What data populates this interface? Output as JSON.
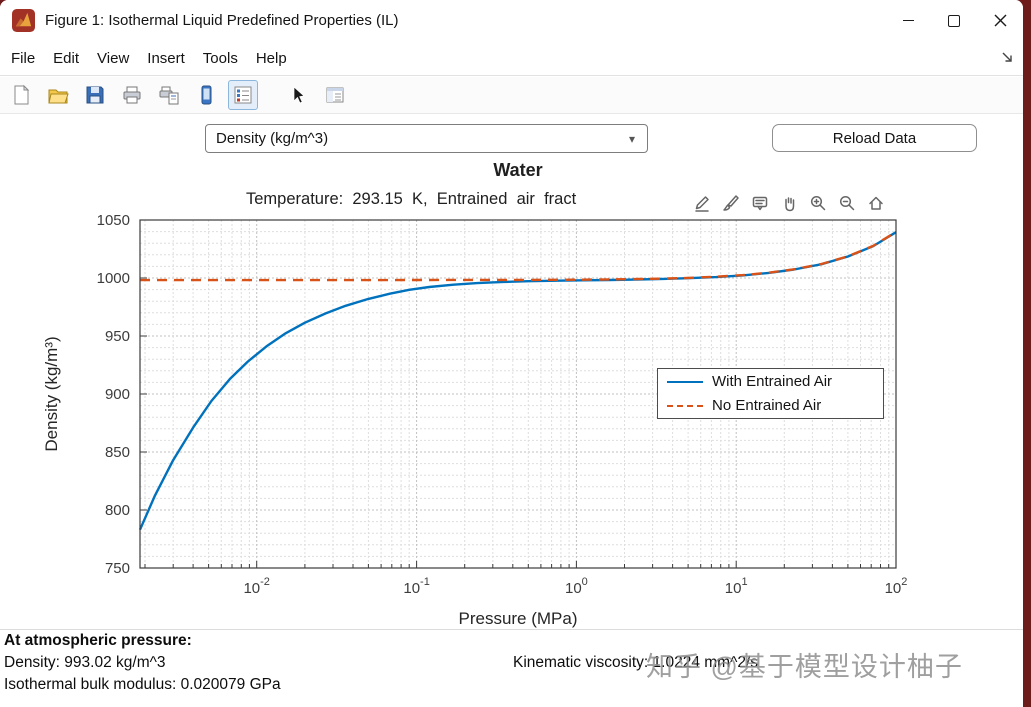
{
  "window": {
    "title": "Figure 1: Isothermal Liquid Predefined Properties (IL)"
  },
  "menubar": {
    "items": [
      "File",
      "Edit",
      "View",
      "Insert",
      "Tools",
      "Help"
    ]
  },
  "toolbar": {
    "icons": [
      "new-document",
      "open-folder",
      "save-floppy",
      "printer",
      "print-preview",
      "figure-palette",
      "plot-browser",
      "arrow-pointer",
      "property-editor"
    ]
  },
  "axes_toolbar": {
    "icons": [
      "edit-pencil",
      "brush",
      "datatip",
      "pan-hand",
      "zoom-in",
      "zoom-out",
      "home"
    ]
  },
  "controls": {
    "property_dropdown": {
      "value": "Density (kg/m^3)",
      "arrow": "▾"
    },
    "reload_button": "Reload Data"
  },
  "chart_data": {
    "type": "line",
    "title": "Water",
    "subtitle": "Temperature:  293.15  K,  Entrained  air  fract",
    "xlabel": "Pressure (MPa)",
    "ylabel": "Density (kg/m³)",
    "xscale": "log",
    "xlim": [
      0.00186,
      100
    ],
    "ylim": [
      750,
      1050
    ],
    "yticks": [
      750,
      800,
      850,
      900,
      950,
      1000,
      1050
    ],
    "xtick_exponents": [
      -2,
      -1,
      0,
      1,
      2
    ],
    "grid": true,
    "minor_grid": true,
    "legend": {
      "location": "right-center"
    },
    "series": [
      {
        "name": "With Entrained Air",
        "color": "#0072BD",
        "style": "solid",
        "points": [
          [
            0.00186,
            783
          ],
          [
            0.0023,
            812
          ],
          [
            0.003,
            843
          ],
          [
            0.004,
            871
          ],
          [
            0.0052,
            894
          ],
          [
            0.0068,
            913
          ],
          [
            0.0088,
            928
          ],
          [
            0.0115,
            941
          ],
          [
            0.015,
            952
          ],
          [
            0.02,
            961.5
          ],
          [
            0.027,
            969.5
          ],
          [
            0.036,
            976
          ],
          [
            0.05,
            982
          ],
          [
            0.068,
            986.5
          ],
          [
            0.09,
            989.8
          ],
          [
            0.12,
            992.2
          ],
          [
            0.17,
            994.2
          ],
          [
            0.24,
            995.6
          ],
          [
            0.35,
            996.6
          ],
          [
            0.5,
            997.2
          ],
          [
            0.75,
            997.7
          ],
          [
            1.1,
            998.0
          ],
          [
            1.6,
            998.3
          ],
          [
            2.4,
            998.7
          ],
          [
            3.5,
            999.2
          ],
          [
            5,
            999.8
          ],
          [
            7.5,
            1000.8
          ],
          [
            11,
            1002.2
          ],
          [
            16,
            1004.4
          ],
          [
            23,
            1007.3
          ],
          [
            34,
            1011.8
          ],
          [
            50,
            1018.5
          ],
          [
            72,
            1027.5
          ],
          [
            100,
            1039.5
          ]
        ]
      },
      {
        "name": "No Entrained Air",
        "color": "#D95319",
        "style": "dashed",
        "points": [
          [
            0.00186,
            998.2
          ],
          [
            0.005,
            998.2
          ],
          [
            0.02,
            998.2
          ],
          [
            0.1,
            998.25
          ],
          [
            0.5,
            998.35
          ],
          [
            1.1,
            998.5
          ],
          [
            1.6,
            998.8
          ],
          [
            2.4,
            999.1
          ],
          [
            3.5,
            999.5
          ],
          [
            5,
            1000.1
          ],
          [
            7.5,
            1001.1
          ],
          [
            11,
            1002.5
          ],
          [
            16,
            1004.6
          ],
          [
            23,
            1007.5
          ],
          [
            34,
            1012
          ],
          [
            50,
            1018.7
          ],
          [
            72,
            1027.7
          ],
          [
            100,
            1039.7
          ]
        ]
      }
    ]
  },
  "status": {
    "header": "At atmospheric pressure:",
    "density": "Density: 993.02 kg/m^3",
    "bulk_modulus": "Isothermal bulk modulus: 0.020079 GPa",
    "kinematic_viscosity": "Kinematic viscosity: 1.0224 mm^2/s"
  },
  "watermark": "知乎 @基于模型设计柚子"
}
